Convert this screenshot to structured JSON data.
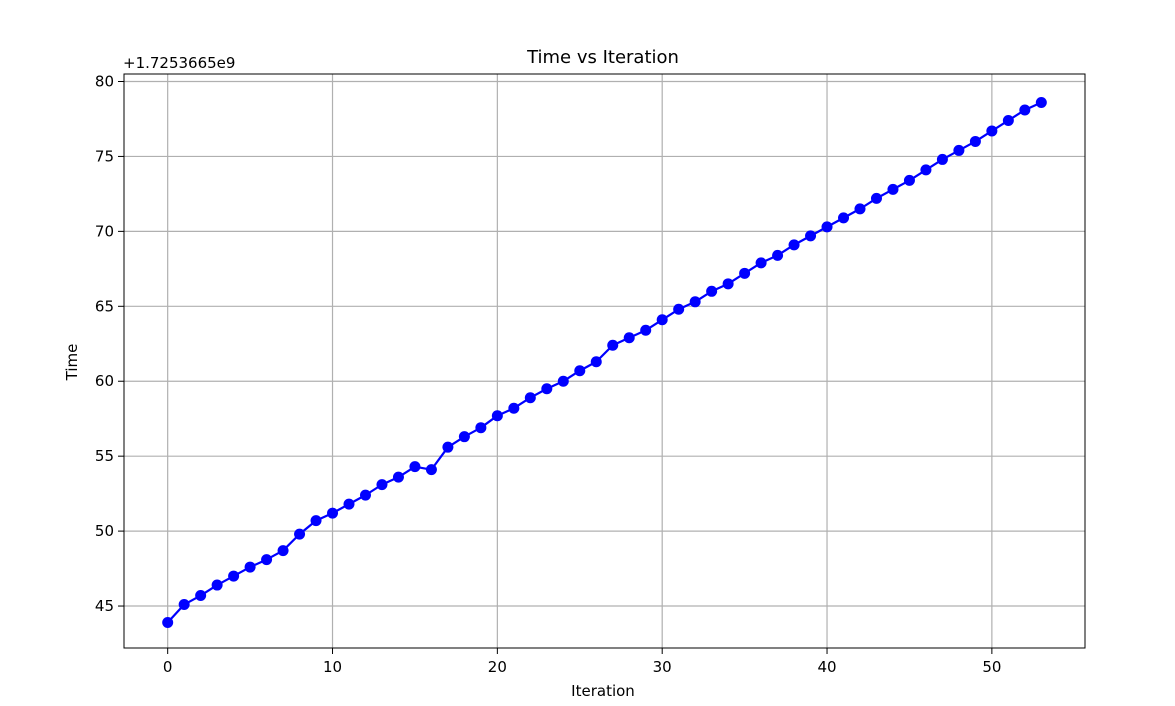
{
  "chart_data": {
    "type": "line",
    "title": "Time vs Iteration",
    "xlabel": "Iteration",
    "ylabel": "Time",
    "offset_text": "+1.7253665e9",
    "xlim": [
      -2.65,
      55.65
    ],
    "ylim": [
      42.2,
      80.5
    ],
    "xticks": [
      0,
      10,
      20,
      30,
      40,
      50
    ],
    "yticks": [
      45,
      50,
      55,
      60,
      65,
      70,
      75,
      80
    ],
    "grid": true,
    "series": [
      {
        "color": "#0000ff",
        "marker": "circle",
        "x": [
          0,
          1,
          2,
          3,
          4,
          5,
          6,
          7,
          8,
          9,
          10,
          11,
          12,
          13,
          14,
          15,
          16,
          17,
          18,
          19,
          20,
          21,
          22,
          23,
          24,
          25,
          26,
          27,
          28,
          29,
          30,
          31,
          32,
          33,
          34,
          35,
          36,
          37,
          38,
          39,
          40,
          41,
          42,
          43,
          44,
          45,
          46,
          47,
          48,
          49,
          50,
          51,
          52,
          53
        ],
        "y": [
          43.9,
          45.1,
          45.7,
          46.4,
          47.0,
          47.6,
          48.1,
          48.7,
          49.8,
          50.7,
          51.2,
          51.8,
          52.4,
          53.1,
          53.6,
          54.3,
          54.1,
          55.6,
          56.3,
          56.9,
          57.7,
          58.2,
          58.9,
          59.5,
          60.0,
          60.7,
          61.3,
          62.4,
          62.9,
          63.4,
          64.1,
          64.8,
          65.3,
          66.0,
          66.5,
          67.2,
          67.9,
          68.4,
          69.1,
          69.7,
          70.3,
          70.9,
          71.5,
          72.2,
          72.8,
          73.4,
          74.1,
          74.8,
          75.4,
          76.0,
          76.7,
          77.4,
          78.1,
          78.6
        ]
      }
    ]
  }
}
